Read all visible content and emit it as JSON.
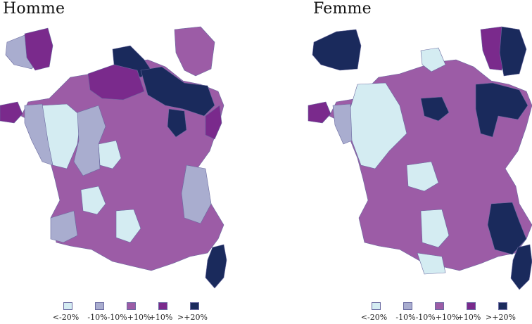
{
  "panels": [
    {
      "title": "Homme",
      "regions": {
        "mainland": "mid",
        "brittany": "high",
        "nw_inset": "low",
        "nw_inset_east": "high",
        "ne_inset": "mid",
        "north_top": "vhigh",
        "north_belt": "high",
        "ne_block": "vhigh",
        "lorraine": "vhigh",
        "alsace_strip": "high",
        "west_light": "vlow",
        "west_lower": "low",
        "center_pale": "vlow",
        "center_low": "low",
        "sw_pale": "vlow",
        "south_pale": "vlow",
        "south_low": "low",
        "alps_low": "low",
        "corsica": "vhigh"
      }
    },
    {
      "title": "Femme",
      "regions": {
        "mainland": "mid",
        "brittany": "high",
        "nw_inset": "vhigh",
        "ne_inset": "high",
        "ne_inset_east": "vhigh",
        "north_top": "vlow",
        "west_light": "vlow",
        "west_lower": "low",
        "paris_block": "vhigh",
        "east_strip": "vhigh",
        "center_pale": "vlow",
        "sw_pale": "vlow",
        "south_pale": "vlow",
        "alps_dark": "vhigh",
        "corsica": "vhigh"
      }
    }
  ],
  "legend": [
    {
      "label": "<-20%",
      "key": "vlow"
    },
    {
      "label": "-10%",
      "key": "low"
    },
    {
      "label": "-10%+10%",
      "key": "mid"
    },
    {
      "label": "+10%",
      "key": "high"
    },
    {
      "label": ">+20%",
      "key": "vhigh"
    }
  ],
  "colors": {
    "vlow": "#d4ecf2",
    "low": "#a9adcf",
    "mid": "#9c5ca6",
    "high": "#7a2a8c",
    "vhigh": "#1a2a5c",
    "border": "#6a6aa0"
  }
}
